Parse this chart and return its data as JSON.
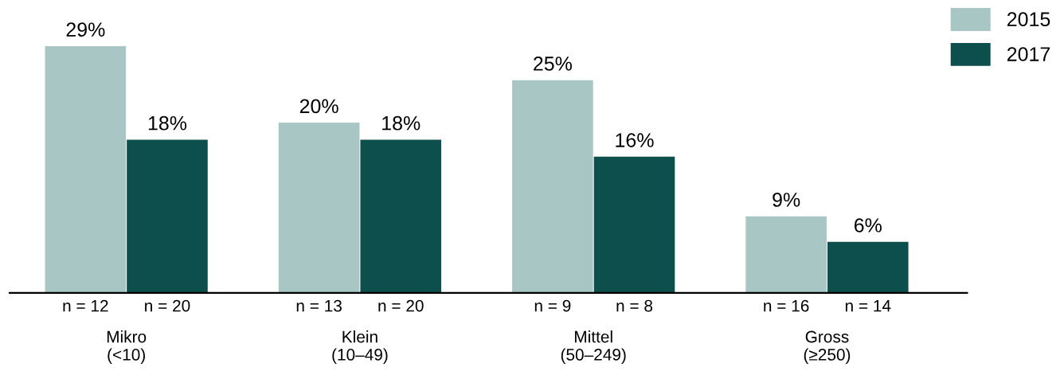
{
  "chart_data": {
    "type": "bar",
    "categories": [
      "Mikro\n(<10)",
      "Klein\n(10–49)",
      "Mittel\n(50–249)",
      "Gross\n(≥250)"
    ],
    "series": [
      {
        "name": "2015",
        "color": "#a8c7c4",
        "values": [
          29,
          20,
          25,
          9
        ],
        "value_labels": [
          "29%",
          "20%",
          "25%",
          "9%"
        ]
      },
      {
        "name": "2017",
        "color": "#0c4f4c",
        "values": [
          18,
          18,
          16,
          6
        ],
        "value_labels": [
          "18%",
          "18%",
          "16%",
          "6%"
        ]
      }
    ],
    "annotations": [
      "n = 12",
      "n = 20",
      "n = 13",
      "n = 20",
      "n = 9",
      "n = 8",
      "n = 16",
      "n = 14"
    ],
    "grid": false,
    "legend": "top right"
  }
}
